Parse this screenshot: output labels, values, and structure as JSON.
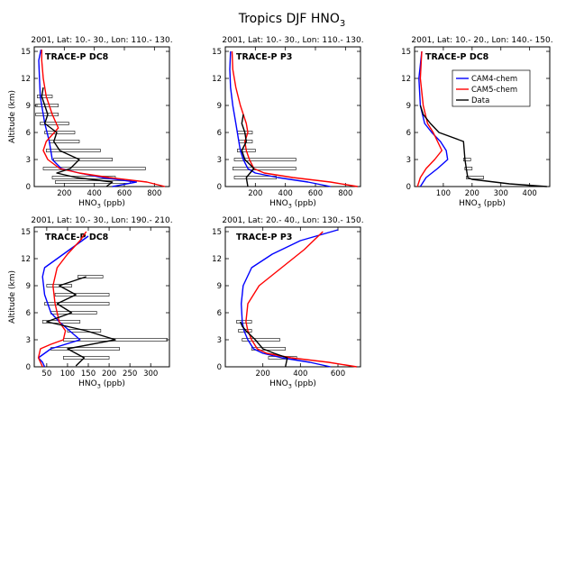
{
  "figure": {
    "title_main": "Tropics DJF HNO",
    "title_sub": "3"
  },
  "chart_data": [
    {
      "type": "line",
      "title": "2001, Lat: 10.- 30., Lon: 110.- 130.",
      "campaign": "TRACE-P DC8",
      "xlabel": "HNO3 (ppb)",
      "ylabel": "Altitude (km)",
      "xlim": [
        0,
        900
      ],
      "ylim": [
        0,
        15.5
      ],
      "xticks": [
        200,
        400,
        600,
        800
      ],
      "yticks": [
        0,
        3,
        6,
        9,
        12,
        15
      ],
      "series": [
        {
          "name": "CAM4-chem",
          "color": "#0000ff",
          "x": [
            520,
            680,
            450,
            300,
            180,
            120,
            100,
            70,
            60,
            50,
            40,
            35,
            30,
            45
          ],
          "y": [
            0,
            0.5,
            1,
            1.5,
            2,
            3,
            5,
            7,
            8,
            9,
            10,
            12,
            14,
            15.2
          ]
        },
        {
          "name": "CAM5-chem",
          "color": "#ff0000",
          "x": [
            870,
            750,
            500,
            300,
            170,
            90,
            60,
            80,
            160,
            120,
            80,
            60,
            50,
            50
          ],
          "y": [
            0,
            0.5,
            1,
            1.5,
            2,
            3,
            4,
            5,
            6.5,
            8,
            10,
            12,
            14,
            15.2
          ]
        },
        {
          "name": "Data",
          "color": "#000000",
          "x": [
            480,
            520,
            280,
            150,
            240,
            300,
            170,
            130,
            150,
            70,
            90,
            70,
            50,
            60
          ],
          "y": [
            0,
            0.5,
            1,
            1.5,
            2,
            3,
            4,
            5,
            6,
            7,
            8,
            9,
            10,
            11
          ]
        }
      ],
      "error_bars": [
        {
          "y": 0.5,
          "x_min": 140,
          "x_max": 640
        },
        {
          "y": 1.0,
          "x_min": 120,
          "x_max": 540
        },
        {
          "y": 2.0,
          "x_min": 60,
          "x_max": 740
        },
        {
          "y": 3.0,
          "x_min": 130,
          "x_max": 520
        },
        {
          "y": 4.0,
          "x_min": 80,
          "x_max": 440
        },
        {
          "y": 5.0,
          "x_min": 100,
          "x_max": 300
        },
        {
          "y": 6.0,
          "x_min": 70,
          "x_max": 270
        },
        {
          "y": 7.0,
          "x_min": 40,
          "x_max": 230
        },
        {
          "y": 8.0,
          "x_min": 10,
          "x_max": 160
        },
        {
          "y": 9.0,
          "x_min": 10,
          "x_max": 160
        },
        {
          "y": 10.0,
          "x_min": 20,
          "x_max": 120
        }
      ]
    },
    {
      "type": "line",
      "title": "2001, Lat: 10.- 30., Lon: 110.- 130.",
      "campaign": "TRACE-P P3",
      "xlabel": "HNO3 (ppb)",
      "ylabel": "",
      "xlim": [
        0,
        900
      ],
      "ylim": [
        0,
        15.5
      ],
      "xticks": [
        200,
        400,
        600,
        800
      ],
      "yticks": [
        0,
        3,
        6,
        9,
        12,
        15
      ],
      "series": [
        {
          "name": "CAM4-chem",
          "color": "#0000ff",
          "x": [
            700,
            550,
            350,
            200,
            150,
            120,
            100,
            90,
            70,
            50,
            35,
            30,
            35
          ],
          "y": [
            0,
            0.5,
            1,
            1.5,
            2,
            3,
            4,
            5,
            7,
            9,
            11,
            13,
            15
          ]
        },
        {
          "name": "CAM5-chem",
          "color": "#ff0000",
          "x": [
            880,
            700,
            450,
            260,
            190,
            160,
            140,
            130,
            150,
            140,
            100,
            70,
            50,
            45
          ],
          "y": [
            0,
            0.5,
            1,
            1.5,
            2,
            3,
            4,
            5,
            6,
            7,
            9,
            11,
            13,
            15
          ]
        },
        {
          "name": "Data",
          "color": "#000000",
          "x": [
            150,
            140,
            190,
            130,
            110,
            140,
            130,
            110,
            120
          ],
          "y": [
            0,
            1,
            2,
            3,
            4,
            5,
            6,
            7,
            8
          ]
        }
      ],
      "error_bars": [
        {
          "y": 1.0,
          "x_min": 60,
          "x_max": 340
        },
        {
          "y": 2.0,
          "x_min": 50,
          "x_max": 470
        },
        {
          "y": 3.0,
          "x_min": 60,
          "x_max": 470
        },
        {
          "y": 4.0,
          "x_min": 80,
          "x_max": 200
        },
        {
          "y": 5.0,
          "x_min": 90,
          "x_max": 180
        },
        {
          "y": 6.0,
          "x_min": 80,
          "x_max": 180
        }
      ]
    },
    {
      "type": "line",
      "title": "2001, Lat: 10.- 20., Lon: 140.- 150.",
      "campaign": "TRACE-P DC8",
      "xlabel": "HNO3 (ppb)",
      "ylabel": "",
      "xlim": [
        0,
        470
      ],
      "ylim": [
        0,
        15.5
      ],
      "xticks": [
        100,
        200,
        300,
        400
      ],
      "yticks": [
        0,
        3,
        6,
        9,
        12,
        15
      ],
      "legend": {
        "position": "top-right",
        "entries": [
          "CAM4-chem",
          "CAM5-chem",
          "Data"
        ]
      },
      "series": [
        {
          "name": "CAM4-chem",
          "color": "#0000ff",
          "x": [
            20,
            40,
            80,
            115,
            110,
            90,
            60,
            35,
            20,
            15,
            25
          ],
          "y": [
            0,
            1,
            2,
            3,
            4,
            5,
            6,
            7,
            9,
            12,
            15
          ]
        },
        {
          "name": "CAM5-chem",
          "color": "#ff0000",
          "x": [
            10,
            20,
            40,
            70,
            95,
            80,
            65,
            45,
            30,
            20,
            25
          ],
          "y": [
            0,
            1,
            2,
            3,
            4,
            5,
            6,
            7,
            9,
            12,
            15
          ]
        },
        {
          "name": "Data",
          "color": "#000000",
          "x": [
            460,
            330,
            200,
            185,
            180,
            175,
            170,
            85,
            55,
            30,
            25,
            20
          ],
          "y": [
            0,
            0.3,
            0.8,
            1,
            2,
            3,
            5,
            6,
            7,
            8,
            8.5,
            9
          ]
        }
      ],
      "error_bars": [
        {
          "y": 1.0,
          "x_min": 180,
          "x_max": 240
        },
        {
          "y": 2.0,
          "x_min": 175,
          "x_max": 200
        },
        {
          "y": 3.0,
          "x_min": 170,
          "x_max": 195
        }
      ]
    },
    {
      "type": "line",
      "title": "2001, Lat: 10.- 30., Lon: 190.- 210.",
      "campaign": "TRACE-P DC8",
      "xlabel": "HNO3 (ppb)",
      "ylabel": "Altitude (km)",
      "xlim": [
        20,
        345
      ],
      "ylim": [
        0,
        15.5
      ],
      "xticks": [
        50,
        100,
        150,
        200,
        250,
        300
      ],
      "yticks": [
        0,
        3,
        6,
        9,
        12,
        15
      ],
      "series": [
        {
          "name": "CAM4-chem",
          "color": "#0000ff",
          "x": [
            45,
            40,
            30,
            60,
            130,
            105,
            80,
            60,
            45,
            40,
            45,
            75,
            120,
            150
          ],
          "y": [
            0,
            0.5,
            1,
            2,
            3,
            4,
            5,
            6,
            8,
            10,
            11,
            12,
            13.5,
            14.5
          ]
        },
        {
          "name": "CAM5-chem",
          "color": "#ff0000",
          "x": [
            40,
            30,
            35,
            60,
            90,
            95,
            80,
            70,
            65,
            75,
            100,
            130,
            145
          ],
          "y": [
            0,
            1,
            2,
            2.5,
            3,
            4,
            5,
            7,
            9,
            11,
            12.5,
            14,
            15
          ]
        },
        {
          "name": "Data",
          "color": "#000000",
          "x": [
            120,
            140,
            100,
            215,
            145,
            50,
            110,
            75,
            120,
            80,
            145
          ],
          "y": [
            0.1,
            1,
            2,
            3,
            4,
            5,
            6,
            7,
            8,
            9,
            10
          ]
        }
      ],
      "error_bars": [
        {
          "y": 1.0,
          "x_min": 90,
          "x_max": 200
        },
        {
          "y": 2.0,
          "x_min": 60,
          "x_max": 225
        },
        {
          "y": 3.0,
          "x_min": 90,
          "x_max": 340
        },
        {
          "y": 4.0,
          "x_min": 100,
          "x_max": 180
        },
        {
          "y": 5.0,
          "x_min": 40,
          "x_max": 130
        },
        {
          "y": 6.0,
          "x_min": 60,
          "x_max": 170
        },
        {
          "y": 7.0,
          "x_min": 45,
          "x_max": 200
        },
        {
          "y": 8.0,
          "x_min": 70,
          "x_max": 200
        },
        {
          "y": 9.0,
          "x_min": 50,
          "x_max": 110
        },
        {
          "y": 10.0,
          "x_min": 125,
          "x_max": 185
        }
      ]
    },
    {
      "type": "line",
      "title": "2001, Lat: 20.- 40., Lon: 130.- 150.",
      "campaign": "TRACE-P P3",
      "xlabel": "HNO3 (ppb)",
      "ylabel": "",
      "xlim": [
        0,
        720
      ],
      "ylim": [
        0,
        15.5
      ],
      "xticks": [
        200,
        400,
        600
      ],
      "yticks": [
        0,
        3,
        6,
        9,
        12,
        15
      ],
      "series": [
        {
          "name": "CAM4-chem",
          "color": "#0000ff",
          "x": [
            560,
            450,
            300,
            200,
            150,
            120,
            100,
            90,
            85,
            95,
            140,
            250,
            400,
            600
          ],
          "y": [
            0,
            0.5,
            1,
            1.5,
            2,
            3,
            4,
            5,
            7,
            9,
            11,
            12.5,
            14,
            15.2
          ]
        },
        {
          "name": "CAM5-chem",
          "color": "#ff0000",
          "x": [
            700,
            550,
            350,
            220,
            170,
            140,
            120,
            110,
            120,
            180,
            300,
            420,
            520
          ],
          "y": [
            0,
            0.5,
            1,
            1.5,
            2,
            3,
            4,
            5,
            7,
            9,
            11,
            13,
            15
          ]
        },
        {
          "name": "Data",
          "color": "#000000",
          "x": [
            320,
            330,
            260,
            200,
            160,
            110,
            90,
            80
          ],
          "y": [
            0,
            1,
            1.5,
            2,
            3,
            4,
            4.5,
            5
          ]
        }
      ],
      "error_bars": [
        {
          "y": 1.0,
          "x_min": 230,
          "x_max": 380
        },
        {
          "y": 2.0,
          "x_min": 140,
          "x_max": 320
        },
        {
          "y": 3.0,
          "x_min": 90,
          "x_max": 290
        },
        {
          "y": 4.0,
          "x_min": 70,
          "x_max": 140
        },
        {
          "y": 5.0,
          "x_min": 60,
          "x_max": 140
        }
      ]
    }
  ]
}
